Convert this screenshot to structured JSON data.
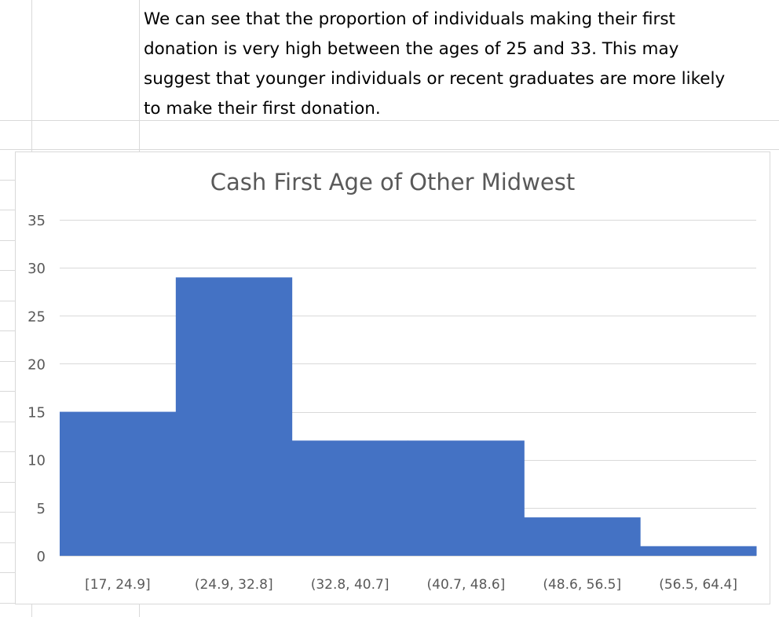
{
  "note": {
    "lines": [
      "We can see that the proportion of individuals making their first",
      "donation is very high between the ages of 25 and 33. This may",
      "suggest that younger individuals or recent graduates are more likely",
      "to make their first donation."
    ]
  },
  "chart_data": {
    "type": "bar",
    "title": "Cash First Age of Other Midwest",
    "xlabel": "",
    "ylabel": "",
    "categories": [
      "[17, 24.9]",
      "(24.9, 32.8]",
      "(32.8, 40.7]",
      "(40.7, 48.6]",
      "(48.6, 56.5]",
      "(56.5, 64.4]"
    ],
    "values": [
      15,
      29,
      12,
      12,
      4,
      1
    ],
    "ylim": [
      0,
      35
    ],
    "yticks": [
      0,
      5,
      10,
      15,
      20,
      25,
      30,
      35
    ],
    "grid": true,
    "legend": "none",
    "bar_color": "#4472c4",
    "gap_width": 0
  }
}
